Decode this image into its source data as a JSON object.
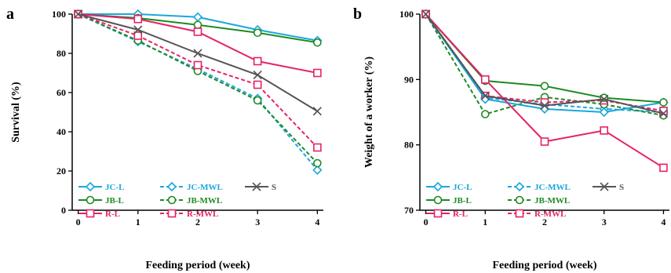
{
  "colors": {
    "JC": "#1aa7dc",
    "JB": "#1e8a22",
    "R": "#e5226a",
    "S": "#555555"
  },
  "chart_data": [
    {
      "type": "line",
      "panel": "a",
      "xlabel": "Feeding period (week)",
      "ylabel": "Survival (%)",
      "x": [
        0,
        1,
        2,
        3,
        4
      ],
      "xticks": [
        "0",
        "1",
        "2",
        "3",
        "4"
      ],
      "xlim": [
        -0.1,
        4.1
      ],
      "ylim": [
        0,
        100
      ],
      "yticks": [
        "0",
        "20",
        "40",
        "60",
        "80",
        "100"
      ],
      "series": [
        {
          "name": "JC-L",
          "group": "JC",
          "dash": false,
          "marker": "diamond",
          "values": [
            100,
            100,
            98.5,
            92,
            86.5
          ]
        },
        {
          "name": "JB-L",
          "group": "JB",
          "dash": false,
          "marker": "circle",
          "values": [
            100,
            98,
            94.5,
            90.5,
            85.5
          ]
        },
        {
          "name": "R-L",
          "group": "R",
          "dash": false,
          "marker": "square",
          "values": [
            100,
            97.5,
            91,
            76,
            70
          ]
        },
        {
          "name": "S",
          "group": "S",
          "dash": false,
          "marker": "x",
          "values": [
            100,
            92,
            80,
            69,
            50.5
          ]
        },
        {
          "name": "JC-MWL",
          "group": "JC",
          "dash": true,
          "marker": "diamond",
          "values": [
            100,
            86,
            72,
            57,
            20.5
          ]
        },
        {
          "name": "JB-MWL",
          "group": "JB",
          "dash": true,
          "marker": "circle",
          "values": [
            100,
            86.5,
            71,
            56,
            24
          ]
        },
        {
          "name": "R-MWL",
          "group": "R",
          "dash": true,
          "marker": "square",
          "values": [
            100,
            89,
            74,
            64,
            32
          ]
        }
      ]
    },
    {
      "type": "line",
      "panel": "b",
      "xlabel": "Feeding period (week)",
      "ylabel": "Weight of  a worker (%)",
      "x": [
        0,
        1,
        2,
        3,
        4
      ],
      "xticks": [
        "0",
        "1",
        "2",
        "3",
        "4"
      ],
      "xlim": [
        -0.1,
        4.1
      ],
      "ylim": [
        70,
        100
      ],
      "yticks": [
        "70",
        "80",
        "90",
        "100"
      ],
      "series": [
        {
          "name": "JC-L",
          "group": "JC",
          "dash": false,
          "marker": "diamond",
          "values": [
            100,
            87,
            85.5,
            85,
            86.5
          ]
        },
        {
          "name": "JB-L",
          "group": "JB",
          "dash": false,
          "marker": "circle",
          "values": [
            100,
            89.8,
            89,
            87.2,
            86.5
          ]
        },
        {
          "name": "R-L",
          "group": "R",
          "dash": false,
          "marker": "square",
          "values": [
            100,
            90,
            80.5,
            82.2,
            76.5
          ]
        },
        {
          "name": "S",
          "group": "S",
          "dash": false,
          "marker": "x",
          "values": [
            100,
            87.5,
            86,
            87,
            84.8
          ]
        },
        {
          "name": "JC-MWL",
          "group": "JC",
          "dash": true,
          "marker": "diamond",
          "values": [
            100,
            87.2,
            86.2,
            85.5,
            85
          ]
        },
        {
          "name": "JB-MWL",
          "group": "JB",
          "dash": true,
          "marker": "circle",
          "values": [
            100,
            84.7,
            87.3,
            86.2,
            84.5
          ]
        },
        {
          "name": "R-MWL",
          "group": "R",
          "dash": true,
          "marker": "square",
          "values": [
            100,
            87.5,
            86.5,
            86.8,
            85.2
          ]
        }
      ]
    }
  ]
}
